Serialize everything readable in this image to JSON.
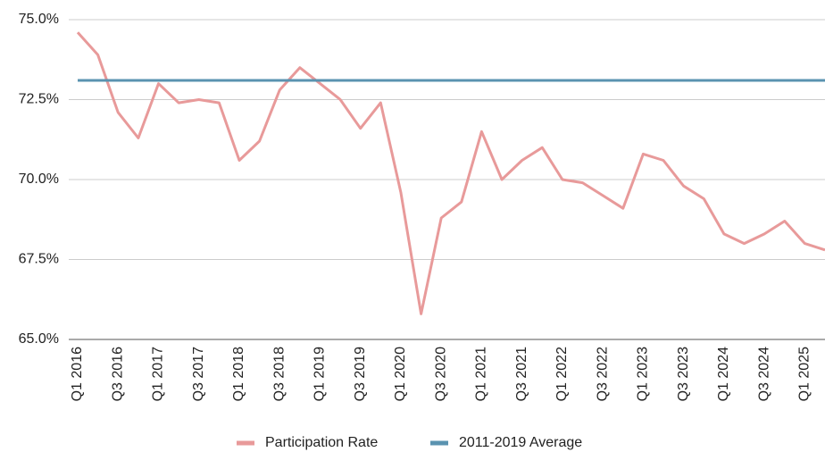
{
  "chart_data": {
    "type": "line",
    "categories": [
      "Q1 2016",
      null,
      "Q3 2016",
      null,
      "Q1 2017",
      null,
      "Q3 2017",
      null,
      "Q1 2018",
      null,
      "Q3 2018",
      null,
      "Q1 2019",
      null,
      "Q3 2019",
      null,
      "Q1 2020",
      null,
      "Q3 2020",
      null,
      "Q1 2021",
      null,
      "Q3 2021",
      null,
      "Q1 2022",
      null,
      "Q3 2022",
      null,
      "Q1 2023",
      null,
      "Q3 2023",
      null,
      "Q1 2024",
      null,
      "Q3 2024",
      null,
      "Q1 2025",
      null
    ],
    "series": [
      {
        "name": "Participation Rate",
        "color": "#e89a9a",
        "values": [
          74.6,
          73.9,
          72.1,
          71.3,
          73.0,
          72.4,
          72.5,
          72.4,
          70.6,
          71.2,
          72.8,
          73.5,
          73.0,
          72.5,
          71.6,
          72.4,
          69.6,
          65.8,
          68.8,
          69.3,
          71.5,
          70.0,
          70.6,
          71.0,
          70.0,
          69.9,
          69.5,
          69.1,
          70.8,
          70.6,
          69.8,
          69.4,
          68.3,
          68.0,
          68.3,
          68.7,
          68.0,
          67.8
        ]
      },
      {
        "name": "2011-2019 Average",
        "color": "#5a93b0",
        "values": [
          73.1,
          73.1,
          73.1,
          73.1,
          73.1,
          73.1,
          73.1,
          73.1,
          73.1,
          73.1,
          73.1,
          73.1,
          73.1,
          73.1,
          73.1,
          73.1,
          73.1,
          73.1,
          73.1,
          73.1,
          73.1,
          73.1,
          73.1,
          73.1,
          73.1,
          73.1,
          73.1,
          73.1,
          73.1,
          73.1,
          73.1,
          73.1,
          73.1,
          73.1,
          73.1,
          73.1,
          73.1,
          73.1
        ]
      }
    ],
    "ylim": [
      65,
      75
    ],
    "yticks": [
      {
        "value": 65,
        "label": "65.0%"
      },
      {
        "value": 67.5,
        "label": "67.5%"
      },
      {
        "value": 70,
        "label": "70.0%"
      },
      {
        "value": 72.5,
        "label": "72.5%"
      },
      {
        "value": 75,
        "label": "75.0%"
      }
    ],
    "grid": true,
    "legend": "bottom"
  }
}
